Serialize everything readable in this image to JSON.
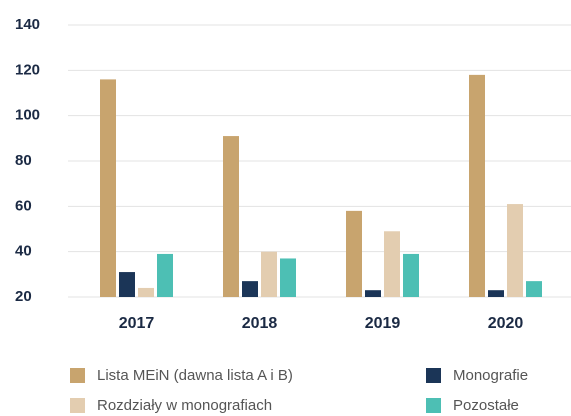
{
  "chart_data": {
    "type": "bar",
    "categories": [
      "2017",
      "2018",
      "2019",
      "2020"
    ],
    "series": [
      {
        "name": "Lista MEiN (dawna lista A i B)",
        "color": "#c8a46e",
        "values": [
          116,
          91,
          58,
          118
        ]
      },
      {
        "name": "Monografie",
        "color": "#1b3557",
        "values": [
          31,
          27,
          23,
          23
        ]
      },
      {
        "name": "Rozdziały w monografiach",
        "color": "#e3cdb0",
        "values": [
          24,
          40,
          49,
          61
        ]
      },
      {
        "name": "Pozostałe",
        "color": "#4dbfb4",
        "values": [
          39,
          37,
          39,
          27
        ]
      }
    ],
    "ylim": [
      20,
      140
    ],
    "yticks": [
      20,
      40,
      60,
      80,
      100,
      120,
      140
    ],
    "grid": true,
    "legend": "bottom"
  }
}
